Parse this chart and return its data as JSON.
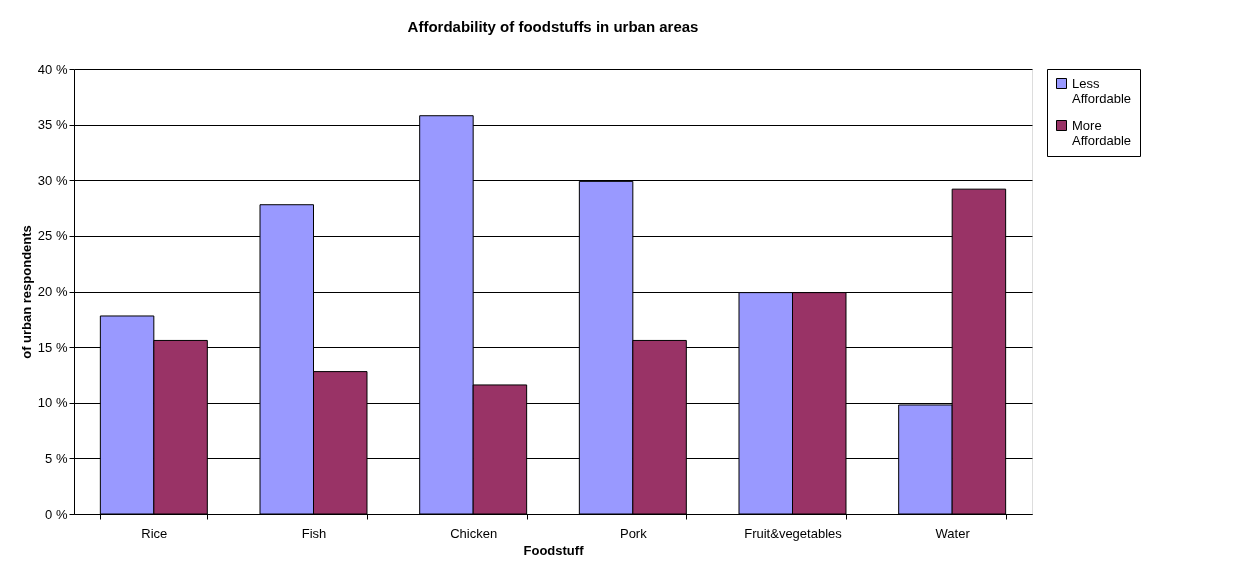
{
  "chart_data": {
    "type": "bar",
    "title": "Affordability of foodstuffs in urban areas",
    "xlabel": "Foodstuff",
    "ylabel": "of urban respondents",
    "categories": [
      "Rice",
      "Fish",
      "Chicken",
      "Pork",
      "Fruit&vegetables",
      "Water"
    ],
    "series": [
      {
        "name": "Less Affordable",
        "color": "#9999ff",
        "values": [
          17.8,
          27.8,
          35.8,
          29.9,
          19.9,
          9.8
        ]
      },
      {
        "name": "More Affordable",
        "color": "#993366",
        "values": [
          15.6,
          12.8,
          11.6,
          15.6,
          19.9,
          29.2
        ]
      }
    ],
    "ylim": [
      0,
      40
    ],
    "yticks": [
      {
        "value": 0,
        "label": "0 %"
      },
      {
        "value": 5,
        "label": "5 %"
      },
      {
        "value": 10,
        "label": "10 %"
      },
      {
        "value": 15,
        "label": "15 %"
      },
      {
        "value": 20,
        "label": "20 %"
      },
      {
        "value": 25,
        "label": "25 %"
      },
      {
        "value": 30,
        "label": "30 %"
      },
      {
        "value": 35,
        "label": "35 %"
      },
      {
        "value": 40,
        "label": "40 %"
      }
    ],
    "grid": "y",
    "legend": "right"
  }
}
